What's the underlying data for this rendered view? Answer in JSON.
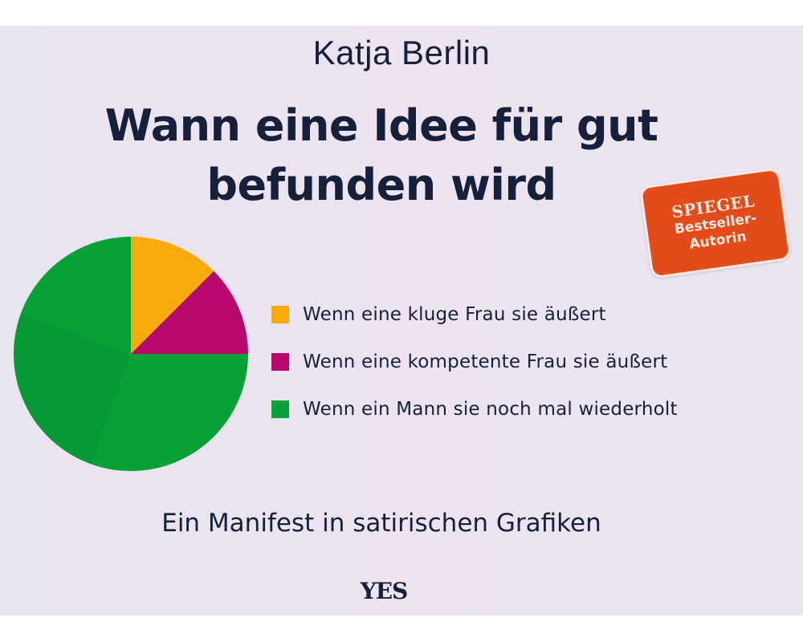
{
  "cover": {
    "author": "Katja Berlin",
    "title_line1": "Wann eine Idee für gut",
    "title_line2": "befunden wird",
    "subtitle": "Ein Manifest in satirischen Grafiken",
    "publisher": "YES",
    "badge": {
      "line1": "SPIEGEL",
      "line2": "Bestseller-",
      "line3": "Autorin",
      "color": "#e24b1a"
    },
    "background": "#ebe4f1",
    "text_color": "#16203a"
  },
  "chart_data": {
    "type": "pie",
    "title": "Wann eine Idee für gut befunden wird",
    "categories": [
      "Wenn eine kluge Frau sie äußert",
      "Wenn eine kompetente Frau sie äußert",
      "Wenn ein Mann sie noch mal wiederholt"
    ],
    "values": [
      12.5,
      12.5,
      75
    ],
    "colors": [
      "#f7ab0a",
      "#b8086e",
      "#07a137"
    ],
    "start_angle_deg": 0,
    "direction": "clockwise",
    "legend_position": "right",
    "legend": [
      {
        "label": "Wenn eine kluge Frau sie äußert",
        "color": "#f7ab0a"
      },
      {
        "label": "Wenn eine kompetente Frau sie äußert",
        "color": "#b8086e"
      },
      {
        "label": "Wenn ein Mann sie noch mal wiederholt",
        "color": "#07a137"
      }
    ]
  }
}
